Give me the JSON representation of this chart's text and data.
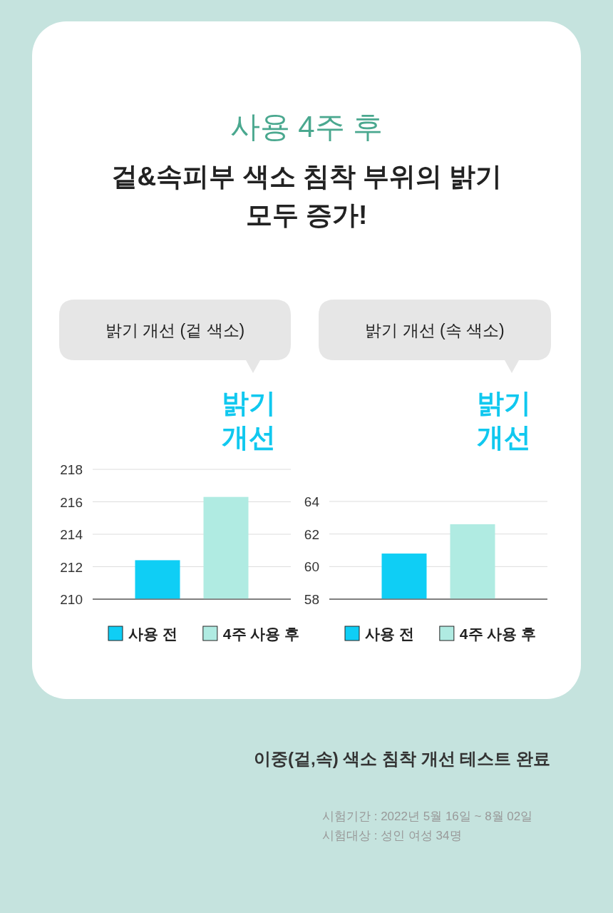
{
  "chart_data": [
    {
      "type": "bar",
      "title": "밝기 개선 (겉 색소)",
      "categories": [
        null
      ],
      "series": [
        {
          "name": "사용 전",
          "color": "#0fcef5",
          "values": [
            212.4
          ]
        },
        {
          "name": "4주 사용 후",
          "color": "#b0ebe2",
          "values": [
            216.3
          ]
        }
      ],
      "ylim": [
        210,
        218
      ],
      "yticks": [
        210,
        212,
        214,
        216,
        218
      ],
      "grid": "y",
      "legend": "bottom",
      "annotations": [
        "사용 4주 후",
        "겉&속피부 색소 침착 부위의 밝기 모두 증가!",
        "밝기 개선"
      ]
    },
    {
      "type": "bar",
      "title": "밝기 개선  (속 색소)",
      "categories": [
        null
      ],
      "series": [
        {
          "name": "사용 전",
          "color": "#0fcef5",
          "values": [
            60.8
          ]
        },
        {
          "name": "4주 사용 후",
          "color": "#b0ebe2",
          "values": [
            62.6
          ]
        }
      ],
      "ylim": [
        58,
        64
      ],
      "yticks": [
        58,
        60,
        62,
        64
      ],
      "grid": "y",
      "legend": "bottom",
      "annotations": [
        "밝기 개선",
        "이중(겉,속) 색소 침착 개선 테스트 완료",
        "시험기간 : 2022년 5월 16일 ~ 8월 02일",
        "시험대상 : 성인 여성 34명"
      ]
    }
  ]
}
